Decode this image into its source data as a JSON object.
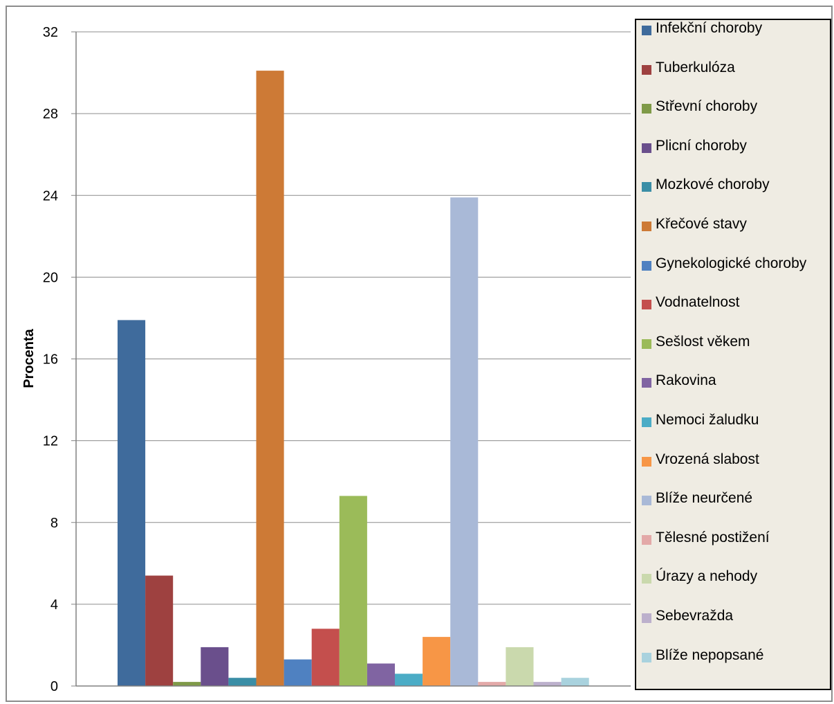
{
  "chart_data": {
    "type": "bar",
    "title": "",
    "xlabel": "",
    "ylabel": "Procenta",
    "ylim": [
      0,
      32
    ],
    "yticks": [
      0,
      4,
      8,
      12,
      16,
      20,
      24,
      28,
      32
    ],
    "grid": true,
    "legend_position": "right",
    "series": [
      {
        "name": "Infekční choroby",
        "value": 17.9,
        "color": "#3f6b9c"
      },
      {
        "name": "Tuberkulóza",
        "value": 5.4,
        "color": "#9e4140"
      },
      {
        "name": "Střevní choroby",
        "value": 0.2,
        "color": "#7f9a48"
      },
      {
        "name": "Plicní choroby",
        "value": 1.9,
        "color": "#6a4f8c"
      },
      {
        "name": "Mozkové choroby",
        "value": 0.4,
        "color": "#3a8ea6"
      },
      {
        "name": "Křečové stavy",
        "value": 30.1,
        "color": "#cd7a36"
      },
      {
        "name": "Gynekologické choroby",
        "value": 1.3,
        "color": "#4f81c1"
      },
      {
        "name": "Vodnatelnost",
        "value": 2.8,
        "color": "#c44f4d"
      },
      {
        "name": "Sešlost věkem",
        "value": 9.3,
        "color": "#9bbb59"
      },
      {
        "name": "Rakovina",
        "value": 1.1,
        "color": "#8064a2"
      },
      {
        "name": "Nemoci žaludku",
        "value": 0.6,
        "color": "#4bacc6"
      },
      {
        "name": "Vrozená slabost",
        "value": 2.4,
        "color": "#f79646"
      },
      {
        "name": "Blíže neurčené",
        "value": 23.9,
        "color": "#a9b9d7"
      },
      {
        "name": "Tělesné postižení",
        "value": 0.2,
        "color": "#e3a9a8"
      },
      {
        "name": "Úrazy a nehody",
        "value": 1.9,
        "color": "#cad9ad"
      },
      {
        "name": "Sebevražda",
        "value": 0.2,
        "color": "#bcb0cc"
      },
      {
        "name": "Blíže nepopsané",
        "value": 0.4,
        "color": "#a9d2de"
      }
    ]
  }
}
